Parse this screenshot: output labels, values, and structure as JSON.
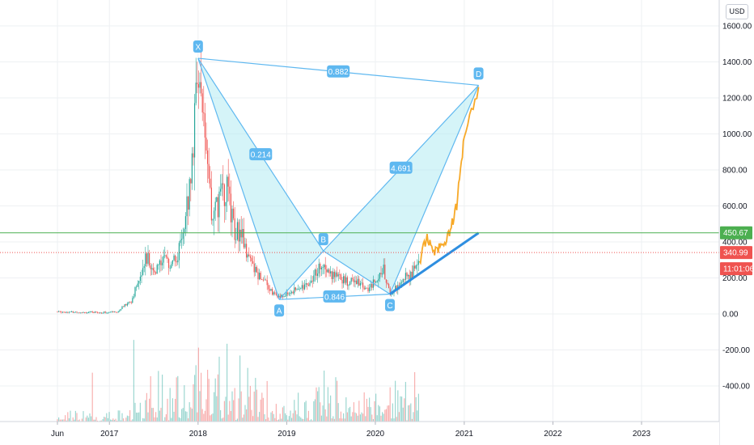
{
  "chart_data": {
    "type": "candlestick",
    "currency": "USD",
    "x_ticks": [
      "Jun",
      "2017",
      "2018",
      "2019",
      "2020",
      "2021",
      "2022",
      "2023"
    ],
    "y_ticks": [
      "1600.00",
      "1400.00",
      "1200.00",
      "1000.00",
      "800.00",
      "600.00",
      "400.00",
      "200.00",
      "0.00",
      "-200.00",
      "-400.00"
    ],
    "ylim": [
      -580,
      1660
    ],
    "grid": true,
    "price_series": [
      {
        "date": "2016-06",
        "price": 12
      },
      {
        "date": "2016-09",
        "price": 10
      },
      {
        "date": "2016-12",
        "price": 8
      },
      {
        "date": "2017-02",
        "price": 12
      },
      {
        "date": "2017-03",
        "price": 45
      },
      {
        "date": "2017-04",
        "price": 70
      },
      {
        "date": "2017-05",
        "price": 190
      },
      {
        "date": "2017-06",
        "price": 330
      },
      {
        "date": "2017-07",
        "price": 220
      },
      {
        "date": "2017-08",
        "price": 300
      },
      {
        "date": "2017-09",
        "price": 280
      },
      {
        "date": "2017-10",
        "price": 300
      },
      {
        "date": "2017-11",
        "price": 420
      },
      {
        "date": "2017-12",
        "price": 750
      },
      {
        "date": "2018-01",
        "price": 1400
      },
      {
        "date": "2018-02",
        "price": 860
      },
      {
        "date": "2018-03",
        "price": 520
      },
      {
        "date": "2018-04",
        "price": 650
      },
      {
        "date": "2018-05",
        "price": 680
      },
      {
        "date": "2018-06",
        "price": 450
      },
      {
        "date": "2018-07",
        "price": 460
      },
      {
        "date": "2018-08",
        "price": 290
      },
      {
        "date": "2018-09",
        "price": 220
      },
      {
        "date": "2018-10",
        "price": 200
      },
      {
        "date": "2018-11",
        "price": 120
      },
      {
        "date": "2018-12",
        "price": 90
      },
      {
        "date": "2019-02",
        "price": 130
      },
      {
        "date": "2019-04",
        "price": 170
      },
      {
        "date": "2019-06",
        "price": 300
      },
      {
        "date": "2019-07",
        "price": 220
      },
      {
        "date": "2019-09",
        "price": 180
      },
      {
        "date": "2019-11",
        "price": 180
      },
      {
        "date": "2019-12",
        "price": 130
      },
      {
        "date": "2020-02",
        "price": 260
      },
      {
        "date": "2020-03",
        "price": 110
      },
      {
        "date": "2020-05",
        "price": 200
      },
      {
        "date": "2020-06",
        "price": 230
      },
      {
        "date": "2020-07",
        "price": 300
      }
    ],
    "projection_series": [
      {
        "date": "2020-08",
        "price": 420
      },
      {
        "date": "2020-09",
        "price": 350
      },
      {
        "date": "2020-10",
        "price": 380
      },
      {
        "date": "2020-11",
        "price": 450
      },
      {
        "date": "2020-12",
        "price": 600
      },
      {
        "date": "2021-01",
        "price": 1000
      },
      {
        "date": "2021-03",
        "price": 1260
      }
    ],
    "harmonic_points": [
      {
        "label": "X",
        "date": "2018-01",
        "price": 1420
      },
      {
        "label": "A",
        "date": "2018-12",
        "price": 80
      },
      {
        "label": "B",
        "date": "2019-06",
        "price": 350
      },
      {
        "label": "C",
        "date": "2020-03",
        "price": 110
      },
      {
        "label": "D",
        "date": "2021-03",
        "price": 1270
      }
    ],
    "ratios": [
      {
        "value": "0.882",
        "between": "X-D"
      },
      {
        "value": "0.214",
        "between": "X-B"
      },
      {
        "value": "4.691",
        "between": "B-D"
      },
      {
        "value": "0.846",
        "between": "A-C"
      }
    ],
    "trendline": {
      "from": {
        "date": "2020-03",
        "price": 110
      },
      "to": {
        "date": "2021-03",
        "price": 450
      }
    },
    "horizontal_line": {
      "price": 450.67,
      "label": "450.67"
    },
    "last_price": {
      "price": 340.99,
      "label": "340.99"
    },
    "countdown": "11:01:06",
    "volume_color_up": "#26a69a",
    "volume_color_down": "#ef5350"
  },
  "colors": {
    "pattern": "#5fb8f0",
    "pattern_fill": "#b2ebf2",
    "projection": "#f7a928",
    "trendline": "#2e8ee0",
    "hline": "#4caf50",
    "last_price": "#ef5350",
    "up": "#26a69a",
    "down": "#ef5350"
  }
}
